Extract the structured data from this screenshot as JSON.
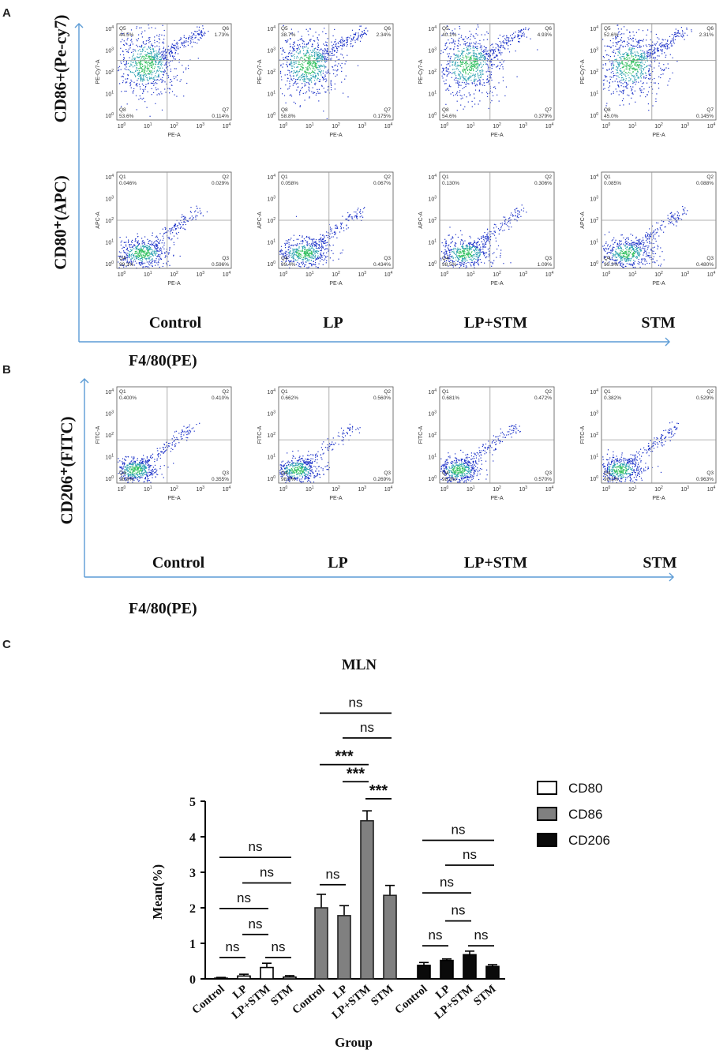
{
  "panel_letters": {
    "a": "A",
    "b": "B",
    "c": "C"
  },
  "colors": {
    "axis_arrow": "#5b9bd5",
    "bar_cd80": "#ffffff",
    "bar_cd86": "#808080",
    "bar_cd206": "#0a0a0a",
    "cloud_core": "#33c060",
    "cloud_edge": "#1a30c8"
  },
  "panel_a": {
    "row1_ylabel": "CD86+(Pe-cy7)",
    "row2_ylabel": "CD80⁺(APC)",
    "xlabel": "F4/80(PE)",
    "groups": [
      "Control",
      "LP",
      "LP+STM",
      "STM"
    ],
    "row1": [
      {
        "group": "Control",
        "x_axis": "PE-A",
        "y_axis": "PE-Cy7-A",
        "quadrants": [
          {
            "name": "Q5",
            "pct": "44.5%"
          },
          {
            "name": "Q6",
            "pct": "1.73%"
          },
          {
            "name": "Q8",
            "pct": "53.6%"
          },
          {
            "name": "Q7",
            "pct": "0.114%"
          }
        ]
      },
      {
        "group": "LP",
        "x_axis": "PE-A",
        "y_axis": "PE-Cy7-A",
        "quadrants": [
          {
            "name": "Q5",
            "pct": "38.7%"
          },
          {
            "name": "Q6",
            "pct": "2.34%"
          },
          {
            "name": "Q8",
            "pct": "58.8%"
          },
          {
            "name": "Q7",
            "pct": "0.175%"
          }
        ]
      },
      {
        "group": "LP+STM",
        "x_axis": "PE-A",
        "y_axis": "PE-Cy7-A",
        "quadrants": [
          {
            "name": "Q5",
            "pct": "40.1%"
          },
          {
            "name": "Q6",
            "pct": "4.93%"
          },
          {
            "name": "Q8",
            "pct": "54.6%"
          },
          {
            "name": "Q7",
            "pct": "0.379%"
          }
        ]
      },
      {
        "group": "STM",
        "x_axis": "PE-A",
        "y_axis": "PE-Cy7-A",
        "quadrants": [
          {
            "name": "Q5",
            "pct": "52.6%"
          },
          {
            "name": "Q6",
            "pct": "2.31%"
          },
          {
            "name": "Q8",
            "pct": "45.0%"
          },
          {
            "name": "Q7",
            "pct": "0.145%"
          }
        ]
      }
    ],
    "row2": [
      {
        "group": "Control",
        "x_axis": "PE-A",
        "y_axis": "APC-A",
        "quadrants": [
          {
            "name": "Q1",
            "pct": "0.046%"
          },
          {
            "name": "Q2",
            "pct": "0.029%"
          },
          {
            "name": "Q4",
            "pct": "99.3%"
          },
          {
            "name": "Q3",
            "pct": "0.596%"
          }
        ]
      },
      {
        "group": "LP",
        "x_axis": "PE-A",
        "y_axis": "APC-A",
        "quadrants": [
          {
            "name": "Q1",
            "pct": "0.058%"
          },
          {
            "name": "Q2",
            "pct": "0.067%"
          },
          {
            "name": "Q4",
            "pct": "99.4%"
          },
          {
            "name": "Q3",
            "pct": "0.434%"
          }
        ]
      },
      {
        "group": "LP+STM",
        "x_axis": "PE-A",
        "y_axis": "APC-A",
        "quadrants": [
          {
            "name": "Q1",
            "pct": "0.130%"
          },
          {
            "name": "Q2",
            "pct": "0.306%"
          },
          {
            "name": "Q4",
            "pct": "98.5%"
          },
          {
            "name": "Q3",
            "pct": "1.09%"
          }
        ]
      },
      {
        "group": "STM",
        "x_axis": "PE-A",
        "y_axis": "APC-A",
        "quadrants": [
          {
            "name": "Q1",
            "pct": "0.085%"
          },
          {
            "name": "Q2",
            "pct": "0.088%"
          },
          {
            "name": "Q4",
            "pct": "99.3%"
          },
          {
            "name": "Q3",
            "pct": "0.480%"
          }
        ]
      }
    ]
  },
  "panel_b": {
    "ylabel": "CD206⁺(FITC)",
    "xlabel": "F4/80(PE)",
    "groups": [
      "Control",
      "LP",
      "LP+STM",
      "STM"
    ],
    "row": [
      {
        "group": "Control",
        "x_axis": "PE-A",
        "y_axis": "FITC-A",
        "quadrants": [
          {
            "name": "Q1",
            "pct": "0.400%"
          },
          {
            "name": "Q2",
            "pct": "0.410%"
          },
          {
            "name": "Q4",
            "pct": "98.8%"
          },
          {
            "name": "Q3",
            "pct": "0.355%"
          }
        ]
      },
      {
        "group": "LP",
        "x_axis": "PE-A",
        "y_axis": "FITC-A",
        "quadrants": [
          {
            "name": "Q1",
            "pct": "0.662%"
          },
          {
            "name": "Q2",
            "pct": "0.560%"
          },
          {
            "name": "Q4",
            "pct": "98.5%"
          },
          {
            "name": "Q3",
            "pct": "0.269%"
          }
        ]
      },
      {
        "group": "LP+STM",
        "x_axis": "PE-A",
        "y_axis": "FITC-A",
        "quadrants": [
          {
            "name": "Q1",
            "pct": "0.681%"
          },
          {
            "name": "Q2",
            "pct": "0.472%"
          },
          {
            "name": "Q4",
            "pct": "98.3%"
          },
          {
            "name": "Q3",
            "pct": "0.570%"
          }
        ]
      },
      {
        "group": "STM",
        "x_axis": "PE-A",
        "y_axis": "FITC-A",
        "quadrants": [
          {
            "name": "Q1",
            "pct": "0.382%"
          },
          {
            "name": "Q2",
            "pct": "0.529%"
          },
          {
            "name": "Q4",
            "pct": "98.1%"
          },
          {
            "name": "Q3",
            "pct": "0.963%"
          }
        ]
      }
    ]
  },
  "log_ticks": {
    "base": "10",
    "exponents": [
      "0",
      "1",
      "2",
      "3",
      "4"
    ]
  },
  "chart_data": {
    "type": "bar",
    "title": "MLN",
    "xlabel": "Group",
    "ylabel": "Mean(%)",
    "ylim": [
      0,
      5
    ],
    "yticks": [
      "0",
      "1",
      "2",
      "3",
      "4",
      "5"
    ],
    "categories": [
      "Control",
      "LP",
      "LP+STM",
      "STM"
    ],
    "series": [
      {
        "name": "CD80",
        "values": [
          0.02,
          0.08,
          0.32,
          0.05
        ],
        "errors": [
          0.02,
          0.05,
          0.12,
          0.04
        ]
      },
      {
        "name": "CD86",
        "values": [
          2.0,
          1.78,
          4.45,
          2.35
        ],
        "errors": [
          0.38,
          0.28,
          0.28,
          0.28
        ]
      },
      {
        "name": "CD206",
        "values": [
          0.38,
          0.52,
          0.68,
          0.35
        ],
        "errors": [
          0.08,
          0.04,
          0.1,
          0.05
        ]
      }
    ],
    "significance": [
      {
        "series": "CD80",
        "from": 0,
        "to": 1,
        "label": "ns",
        "level": 0.6
      },
      {
        "series": "CD80",
        "from": 1,
        "to": 2,
        "label": "ns",
        "level": 1.25
      },
      {
        "series": "CD80",
        "from": 2,
        "to": 3,
        "label": "ns",
        "level": 0.6
      },
      {
        "series": "CD80",
        "from": 0,
        "to": 2,
        "label": "ns",
        "level": 1.98
      },
      {
        "series": "CD80",
        "from": 1,
        "to": 3,
        "label": "ns",
        "level": 2.7
      },
      {
        "series": "CD80",
        "from": 0,
        "to": 3,
        "label": "ns",
        "level": 3.42
      },
      {
        "series": "CD86",
        "from": 0,
        "to": 1,
        "label": "ns",
        "level": 2.65
      },
      {
        "series": "CD86",
        "from": 2,
        "to": 3,
        "label": "***",
        "level": 5.07
      },
      {
        "series": "CD86",
        "from": 1,
        "to": 2,
        "label": "***",
        "level": 5.55
      },
      {
        "series": "CD86",
        "from": 0,
        "to": 2,
        "label": "***",
        "level": 6.03
      },
      {
        "series": "CD86",
        "from": 1,
        "to": 3,
        "label": "ns",
        "level": 6.78
      },
      {
        "series": "CD86",
        "from": 0,
        "to": 3,
        "label": "ns",
        "level": 7.48
      },
      {
        "series": "CD206",
        "from": 0,
        "to": 1,
        "label": "ns",
        "level": 0.93
      },
      {
        "series": "CD206",
        "from": 1,
        "to": 2,
        "label": "ns",
        "level": 1.63
      },
      {
        "series": "CD206",
        "from": 2,
        "to": 3,
        "label": "ns",
        "level": 0.93
      },
      {
        "series": "CD206",
        "from": 0,
        "to": 2,
        "label": "ns",
        "level": 2.42
      },
      {
        "series": "CD206",
        "from": 1,
        "to": 3,
        "label": "ns",
        "level": 3.2
      },
      {
        "series": "CD206",
        "from": 0,
        "to": 3,
        "label": "ns",
        "level": 3.9
      }
    ]
  }
}
